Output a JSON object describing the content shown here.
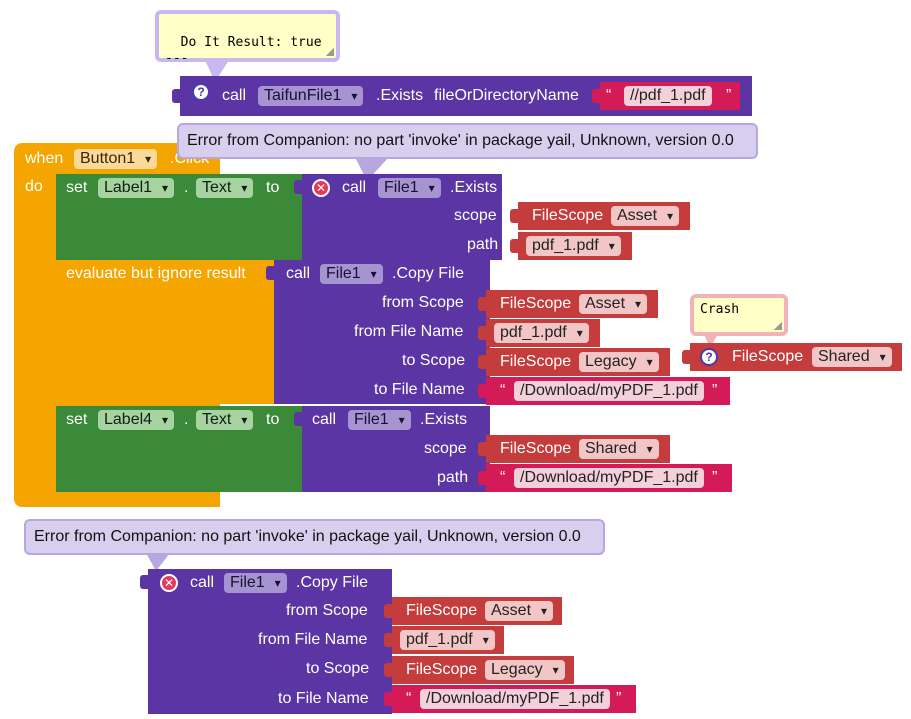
{
  "colors": {
    "procedure": "#5b35a3",
    "set_block": "#3a8a3a",
    "event_block": "#f5a500",
    "filescope_block": "#c43c3c",
    "text_block": "#d41a57"
  },
  "top_call": {
    "do_it_result": "Do It Result: true\n---",
    "call": "call",
    "component": "TaifunFile1",
    "method": ".Exists",
    "param": "fileOrDirectoryName",
    "value": "//pdf_1.pdf"
  },
  "event": {
    "when": "when",
    "component": "Button1",
    "event_name": ".Click",
    "do": "do",
    "error_bubble": "Error from Companion: no part 'invoke' in package yail, Unknown, version 0.0",
    "stmt1": {
      "set": "set",
      "label": "Label1",
      "dot": ".",
      "prop": "Text",
      "to": "to",
      "call": "call",
      "component": "File1",
      "method": ".Exists",
      "scope_label": "scope",
      "path_label": "path",
      "filescope": "FileScope",
      "scope_value": "Asset",
      "path_value": "pdf_1.pdf"
    },
    "stmt2": {
      "evaluate": "evaluate but ignore result",
      "call": "call",
      "component": "File1",
      "method": ".Copy File",
      "from_scope_label": "from Scope",
      "from_file_label": "from File Name",
      "to_scope_label": "to Scope",
      "to_file_label": "to File Name",
      "filescope": "FileScope",
      "from_scope_value": "Asset",
      "from_file_value": "pdf_1.pdf",
      "to_scope_value": "Legacy",
      "to_file_value": "/Download/myPDF_1.pdf"
    },
    "stmt3": {
      "set": "set",
      "label": "Label4",
      "dot": ".",
      "prop": "Text",
      "to": "to",
      "call": "call",
      "component": "File1",
      "method": ".Exists",
      "scope_label": "scope",
      "path_label": "path",
      "filescope": "FileScope",
      "scope_value": "Shared",
      "path_value": "/Download/myPDF_1.pdf"
    }
  },
  "floating_scope": {
    "crash": "Crash",
    "filescope": "FileScope",
    "value": "Shared"
  },
  "bottom_call": {
    "error_bubble": "Error from Companion: no part 'invoke' in package yail, Unknown, version 0.0",
    "call": "call",
    "component": "File1",
    "method": ".Copy File",
    "from_scope_label": "from Scope",
    "from_file_label": "from File Name",
    "to_scope_label": "to Scope",
    "to_file_label": "to File Name",
    "filescope": "FileScope",
    "from_scope_value": "Asset",
    "from_file_value": "pdf_1.pdf",
    "to_scope_value": "Legacy",
    "to_file_value": "/Download/myPDF_1.pdf"
  },
  "quote_open": "“",
  "quote_close": "”",
  "icons": {
    "help": "help-icon",
    "error": "error-icon",
    "dropdown": "chevron-down-icon"
  }
}
